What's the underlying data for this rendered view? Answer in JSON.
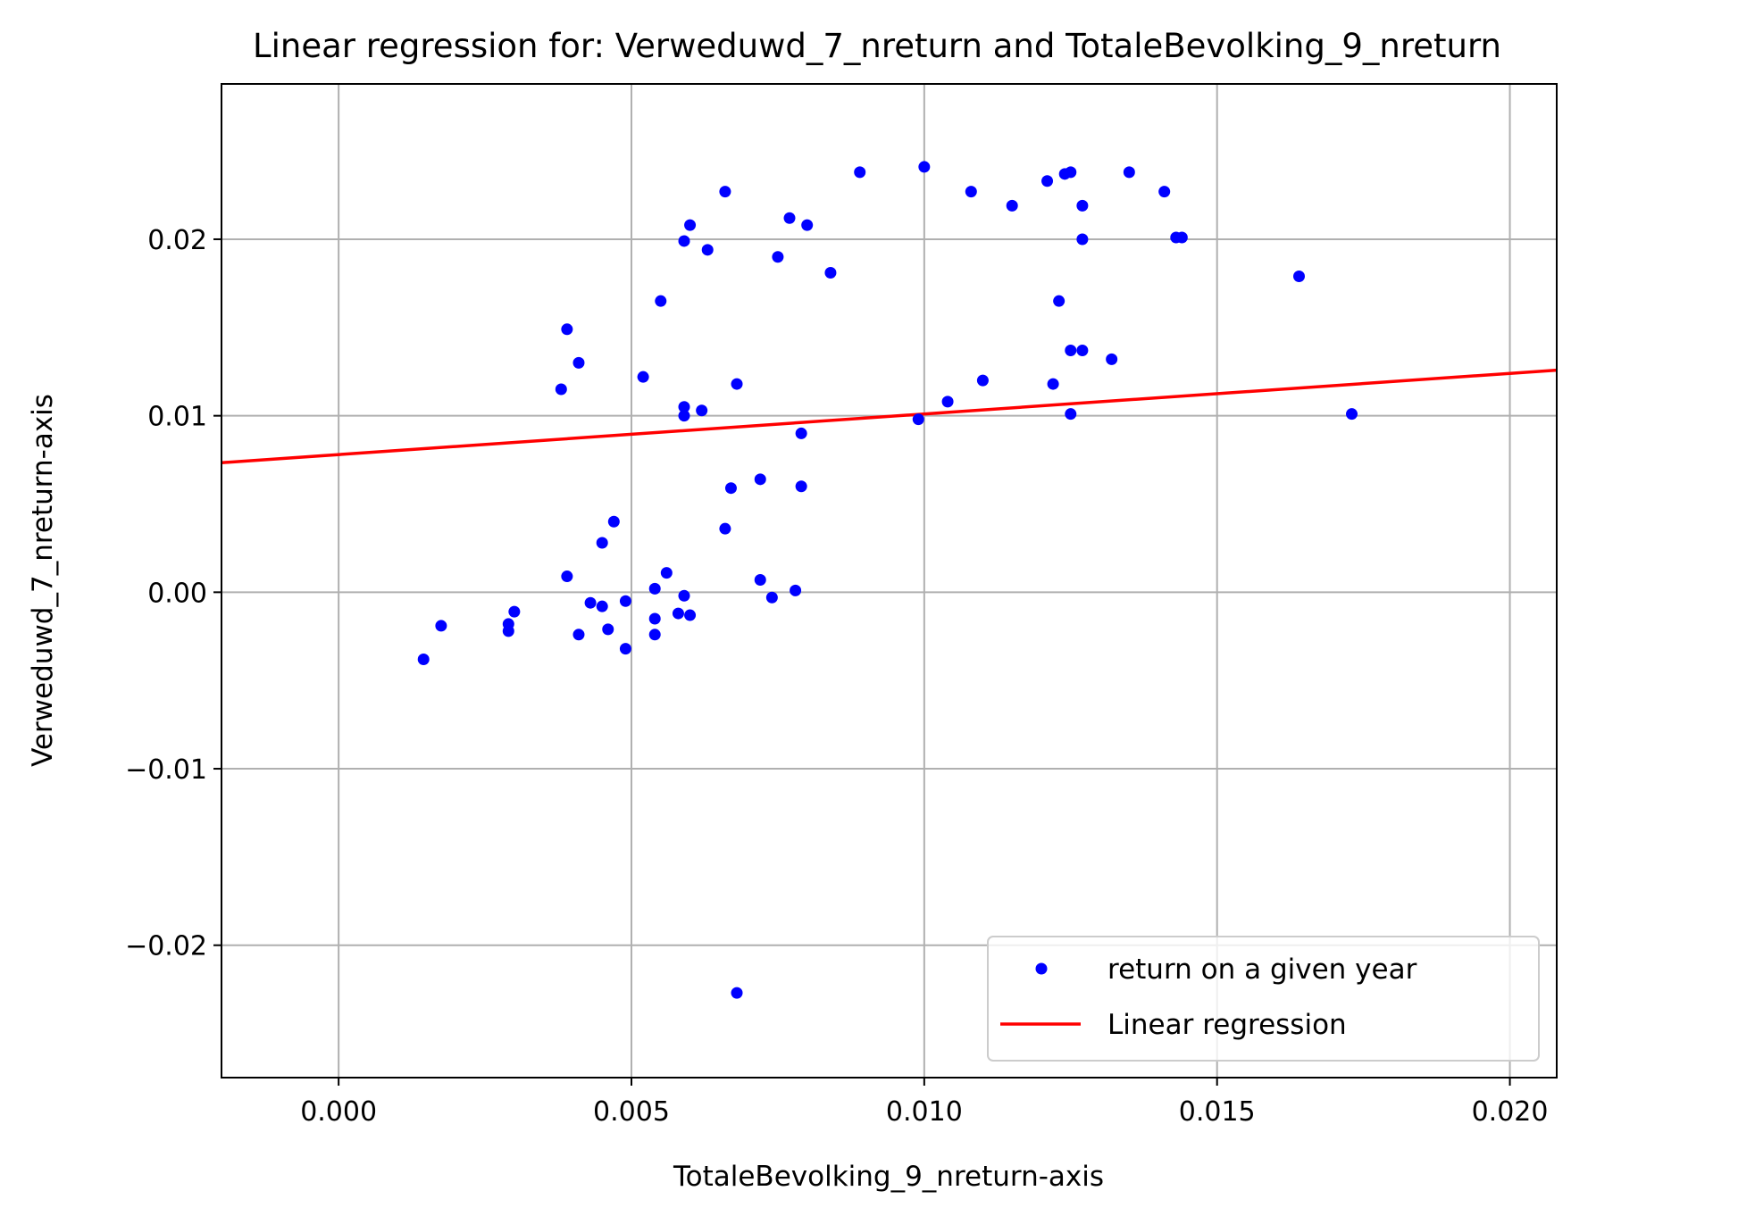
{
  "chart_data": {
    "type": "scatter",
    "title": "Linear regression for: Verweduwd_7_nreturn and TotaleBevolking_9_nreturn",
    "xlabel": "TotaleBevolking_9_nreturn-axis",
    "ylabel": "Verweduwd_7_nreturn-axis",
    "xlim": [
      -0.002,
      0.0208
    ],
    "ylim": [
      -0.0275,
      0.0288
    ],
    "xticks": [
      0.0,
      0.005,
      0.01,
      0.015,
      0.02
    ],
    "xtick_labels": [
      "0.000",
      "0.005",
      "0.010",
      "0.015",
      "0.020"
    ],
    "yticks": [
      -0.02,
      -0.01,
      0.0,
      0.01,
      0.02
    ],
    "ytick_labels": [
      "−0.02",
      "−0.01",
      "0.00",
      "0.01",
      "0.02"
    ],
    "grid": true,
    "legend": {
      "placement": "lower-right",
      "entries": [
        "return on a given year",
        "Linear regression"
      ]
    },
    "series": [
      {
        "name": "return on a given year",
        "type": "scatter",
        "color": "#0000ff",
        "points": [
          [
            0.00145,
            -0.0038
          ],
          [
            0.00175,
            -0.0019
          ],
          [
            0.0029,
            -0.0022
          ],
          [
            0.0029,
            -0.0018
          ],
          [
            0.003,
            -0.0011
          ],
          [
            0.0038,
            0.0115
          ],
          [
            0.0039,
            0.0149
          ],
          [
            0.0039,
            0.0009
          ],
          [
            0.0041,
            0.013
          ],
          [
            0.0041,
            -0.0024
          ],
          [
            0.0043,
            -0.0006
          ],
          [
            0.0045,
            -0.0008
          ],
          [
            0.0045,
            0.0028
          ],
          [
            0.0046,
            -0.0021
          ],
          [
            0.0047,
            0.004
          ],
          [
            0.0049,
            -0.0005
          ],
          [
            0.0049,
            -0.0032
          ],
          [
            0.0052,
            0.0122
          ],
          [
            0.0054,
            0.0002
          ],
          [
            0.0054,
            -0.0015
          ],
          [
            0.0054,
            -0.0024
          ],
          [
            0.0055,
            0.0165
          ],
          [
            0.0056,
            0.0011
          ],
          [
            0.0058,
            -0.0012
          ],
          [
            0.0059,
            0.0199
          ],
          [
            0.0059,
            0.0105
          ],
          [
            0.0059,
            0.01
          ],
          [
            0.0059,
            -0.0002
          ],
          [
            0.006,
            0.0208
          ],
          [
            0.006,
            -0.0013
          ],
          [
            0.0062,
            0.0103
          ],
          [
            0.0063,
            0.0194
          ],
          [
            0.0066,
            0.0227
          ],
          [
            0.0066,
            0.0036
          ],
          [
            0.0067,
            0.0059
          ],
          [
            0.0068,
            -0.0227
          ],
          [
            0.0068,
            0.0118
          ],
          [
            0.0072,
            0.0064
          ],
          [
            0.0072,
            0.0007
          ],
          [
            0.0074,
            -0.0003
          ],
          [
            0.0075,
            0.019
          ],
          [
            0.0077,
            0.0212
          ],
          [
            0.0078,
            0.0001
          ],
          [
            0.0079,
            0.009
          ],
          [
            0.0079,
            0.006
          ],
          [
            0.008,
            0.0208
          ],
          [
            0.0084,
            0.0181
          ],
          [
            0.0089,
            0.0238
          ],
          [
            0.0099,
            0.0098
          ],
          [
            0.01,
            0.0241
          ],
          [
            0.0104,
            0.0108
          ],
          [
            0.0108,
            0.0227
          ],
          [
            0.011,
            0.012
          ],
          [
            0.0115,
            0.0219
          ],
          [
            0.0121,
            0.0233
          ],
          [
            0.0122,
            0.0118
          ],
          [
            0.0123,
            0.0165
          ],
          [
            0.0124,
            0.0237
          ],
          [
            0.0125,
            0.0238
          ],
          [
            0.0125,
            0.0137
          ],
          [
            0.0125,
            0.0101
          ],
          [
            0.0127,
            0.0137
          ],
          [
            0.0127,
            0.0219
          ],
          [
            0.0127,
            0.02
          ],
          [
            0.0132,
            0.0132
          ],
          [
            0.0135,
            0.0238
          ],
          [
            0.0141,
            0.0227
          ],
          [
            0.0143,
            0.0201
          ],
          [
            0.0144,
            0.0201
          ],
          [
            0.0164,
            0.0179
          ],
          [
            0.0173,
            0.0101
          ]
        ]
      },
      {
        "name": "Linear regression",
        "type": "line",
        "color": "#ff0000",
        "slope": 0.23,
        "intercept": 0.0078
      }
    ]
  }
}
